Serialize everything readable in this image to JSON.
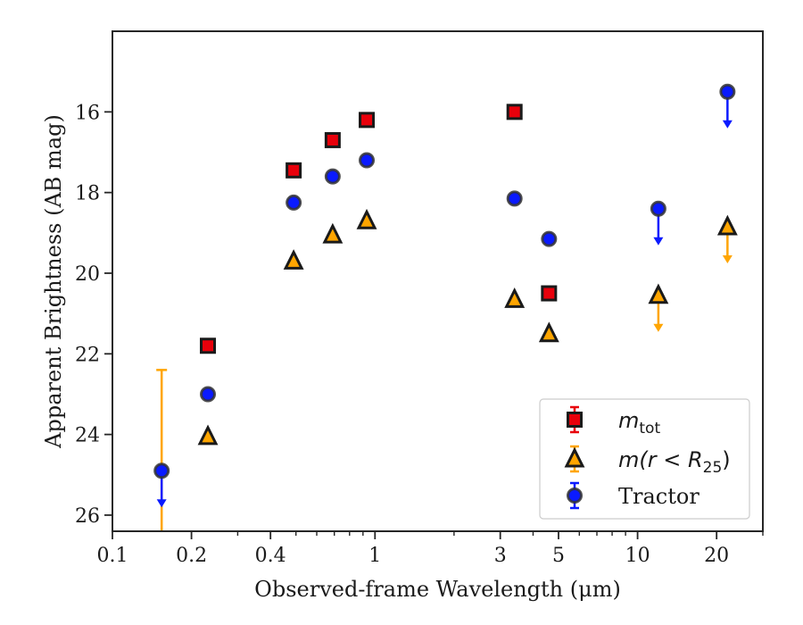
{
  "chart_data": {
    "type": "scatter",
    "xlabel": "Observed-frame Wavelength (μm)",
    "ylabel": "Apparent Brightness (AB mag)",
    "xscale": "log",
    "xlim": [
      0.1,
      30
    ],
    "ylim": [
      26.4,
      14.0
    ],
    "y_inverted": true,
    "xticks": [
      {
        "value": 0.1,
        "label": "0.1"
      },
      {
        "value": 0.2,
        "label": "0.2"
      },
      {
        "value": 0.4,
        "label": "0.4"
      },
      {
        "value": 1,
        "label": "1"
      },
      {
        "value": 3,
        "label": "3"
      },
      {
        "value": 5,
        "label": "5"
      },
      {
        "value": 10,
        "label": "10"
      },
      {
        "value": 20,
        "label": "20"
      }
    ],
    "yticks": [
      {
        "value": 16,
        "label": "16"
      },
      {
        "value": 18,
        "label": "18"
      },
      {
        "value": 20,
        "label": "20"
      },
      {
        "value": 22,
        "label": "22"
      },
      {
        "value": 24,
        "label": "24"
      },
      {
        "value": 26,
        "label": "26"
      }
    ],
    "legend_position": "lower-right",
    "grid": false,
    "series": [
      {
        "key": "mtot",
        "legend_main": "m",
        "legend_sub": "tot",
        "marker": "square",
        "color": "#e8000b",
        "edge_color": "#1a1a1a",
        "points": [
          {
            "x": 0.231,
            "y": 21.8
          },
          {
            "x": 0.49,
            "y": 17.45
          },
          {
            "x": 0.69,
            "y": 16.7
          },
          {
            "x": 0.93,
            "y": 16.2
          },
          {
            "x": 3.4,
            "y": 16.0
          },
          {
            "x": 4.6,
            "y": 20.5
          }
        ]
      },
      {
        "key": "mR25",
        "legend_main": "m(r < R",
        "legend_sub": "25",
        "legend_tail": ")",
        "marker": "triangle",
        "color": "#ffa500",
        "edge_color": "#1a1a1a",
        "points": [
          {
            "x": 0.231,
            "y": 24.05
          },
          {
            "x": 0.49,
            "y": 19.7
          },
          {
            "x": 0.69,
            "y": 19.05
          },
          {
            "x": 0.93,
            "y": 18.7
          },
          {
            "x": 3.4,
            "y": 20.65
          },
          {
            "x": 4.6,
            "y": 21.5,
            "err": 0.2
          },
          {
            "x": 12,
            "y": 20.55,
            "upper_limit": true
          },
          {
            "x": 22,
            "y": 18.85,
            "upper_limit": true
          }
        ],
        "error_bars": [
          {
            "x": 0.154,
            "y_low": 22.4,
            "y_high": 26.4
          }
        ]
      },
      {
        "key": "tractor",
        "legend_main": "Tractor",
        "marker": "circle",
        "color": "#0a1aff",
        "edge_color": "#333333",
        "points": [
          {
            "x": 0.154,
            "y": 24.9,
            "upper_limit": true
          },
          {
            "x": 0.231,
            "y": 23.0
          },
          {
            "x": 0.49,
            "y": 18.25
          },
          {
            "x": 0.69,
            "y": 17.6
          },
          {
            "x": 0.93,
            "y": 17.2
          },
          {
            "x": 3.4,
            "y": 18.15
          },
          {
            "x": 4.6,
            "y": 19.15
          },
          {
            "x": 12,
            "y": 18.4,
            "upper_limit": true
          },
          {
            "x": 22,
            "y": 15.5,
            "upper_limit": true
          }
        ]
      }
    ]
  }
}
